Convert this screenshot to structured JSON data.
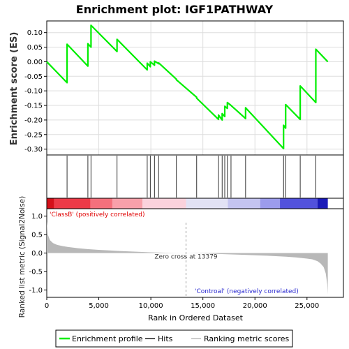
{
  "chart_data": {
    "type": "line",
    "title": "Enrichment plot: IGF1PATHWAY",
    "es_panel": {
      "ylabel": "Enrichment score (ES)",
      "ylim": [
        -0.32,
        0.14
      ],
      "yticks": [
        0.1,
        0.05,
        0.0,
        -0.05,
        -0.1,
        -0.15,
        -0.2,
        -0.25,
        -0.3
      ],
      "ytick_labels": [
        "0.10",
        "0.05",
        "0.00",
        "-0.05",
        "-0.10",
        "-0.15",
        "-0.20",
        "-0.25",
        "-0.30"
      ],
      "grid": true,
      "series": [
        {
          "name": "Enrichment profile",
          "color": "#00ee00",
          "x": [
            0,
            1950,
            1950,
            3950,
            3950,
            4250,
            4250,
            6750,
            6750,
            9650,
            9650,
            9950,
            9950,
            10350,
            10350,
            10750,
            10750,
            12450,
            12450,
            14400,
            14400,
            16500,
            16500,
            16850,
            16850,
            17100,
            17100,
            17350,
            17350,
            17700,
            17700,
            19100,
            19100,
            22750,
            22750,
            22950,
            22950,
            24350,
            24350,
            25850,
            25850,
            27000
          ],
          "y": [
            0.0,
            -0.072,
            0.06,
            -0.015,
            0.062,
            0.05,
            0.125,
            0.035,
            0.077,
            -0.028,
            -0.005,
            -0.017,
            0.0,
            -0.012,
            0.002,
            -0.007,
            -0.004,
            -0.06,
            -0.062,
            -0.122,
            -0.125,
            -0.198,
            -0.183,
            -0.2,
            -0.178,
            -0.188,
            -0.153,
            -0.16,
            -0.14,
            -0.15,
            -0.15,
            -0.195,
            -0.158,
            -0.298,
            -0.218,
            -0.228,
            -0.147,
            -0.198,
            -0.083,
            -0.14,
            0.043,
            0.0
          ]
        }
      ]
    },
    "hits_panel": {
      "legend_name": "Hits",
      "positions": [
        1950,
        3950,
        4250,
        6750,
        9650,
        9950,
        10350,
        10750,
        12450,
        14400,
        16500,
        16850,
        17100,
        17350,
        17700,
        19100,
        22750,
        22950,
        24350,
        25850
      ]
    },
    "rank_panel": {
      "ylabel": "Ranked list metric (Signal2Noise)",
      "legend_name": "Ranking metric scores",
      "ylim": [
        -1.2,
        1.2
      ],
      "yticks": [
        1.0,
        0.5,
        0.0,
        -0.5,
        -1.0
      ],
      "ytick_labels": [
        "1.0",
        "0.5",
        "0.0",
        "-0.5",
        "-1.0"
      ],
      "zero_cross": 13379,
      "zero_cross_label": "Zero cross at 13379",
      "pos_label": "'ClassB' (positively correlated)",
      "neg_label": "'Controal' (negatively correlated)",
      "curve_x": [
        0,
        100,
        300,
        600,
        1000,
        1500,
        2000,
        3000,
        4000,
        5000,
        6000,
        7000,
        8000,
        9000,
        10000,
        11000,
        12000,
        13379,
        15000,
        17000,
        19000,
        21000,
        22000,
        23000,
        24000,
        25000,
        25500,
        26000,
        26300,
        26600,
        26800,
        26950,
        27000
      ],
      "curve_y": [
        0.85,
        0.5,
        0.35,
        0.27,
        0.22,
        0.19,
        0.165,
        0.13,
        0.105,
        0.085,
        0.07,
        0.055,
        0.042,
        0.03,
        0.02,
        0.012,
        0.005,
        0.0,
        -0.01,
        -0.03,
        -0.05,
        -0.07,
        -0.085,
        -0.1,
        -0.12,
        -0.15,
        -0.17,
        -0.22,
        -0.28,
        -0.38,
        -0.55,
        -0.85,
        -1.12
      ]
    },
    "xaxis": {
      "xlabel": "Rank in Ordered Dataset",
      "xlim": [
        0,
        28500
      ],
      "xticks": [
        0,
        5000,
        10000,
        15000,
        20000,
        25000
      ],
      "xtick_labels": [
        "0",
        "5,000",
        "10,000",
        "15,000",
        "20,000",
        "25,000"
      ]
    },
    "heat_bar": {
      "segments": [
        {
          "from": 0,
          "to": 700,
          "color": "#d4101a"
        },
        {
          "from": 700,
          "to": 4200,
          "color": "#ec3a48"
        },
        {
          "from": 4200,
          "to": 6300,
          "color": "#f4707c"
        },
        {
          "from": 6300,
          "to": 9200,
          "color": "#f8a0aa"
        },
        {
          "from": 9200,
          "to": 13379,
          "color": "#fbd2dc"
        },
        {
          "from": 13379,
          "to": 17400,
          "color": "#e2e2f4"
        },
        {
          "from": 17400,
          "to": 20500,
          "color": "#c4c4f0"
        },
        {
          "from": 20500,
          "to": 22400,
          "color": "#9c9cec"
        },
        {
          "from": 22400,
          "to": 26000,
          "color": "#5252dc"
        },
        {
          "from": 26000,
          "to": 27000,
          "color": "#1a1ab8"
        }
      ]
    },
    "legend": {
      "items": [
        {
          "label": "Enrichment profile",
          "color": "#00ee00"
        },
        {
          "label": "Hits",
          "color": "#555555"
        },
        {
          "label": "Ranking metric scores",
          "color": "#cccccc"
        }
      ]
    }
  }
}
